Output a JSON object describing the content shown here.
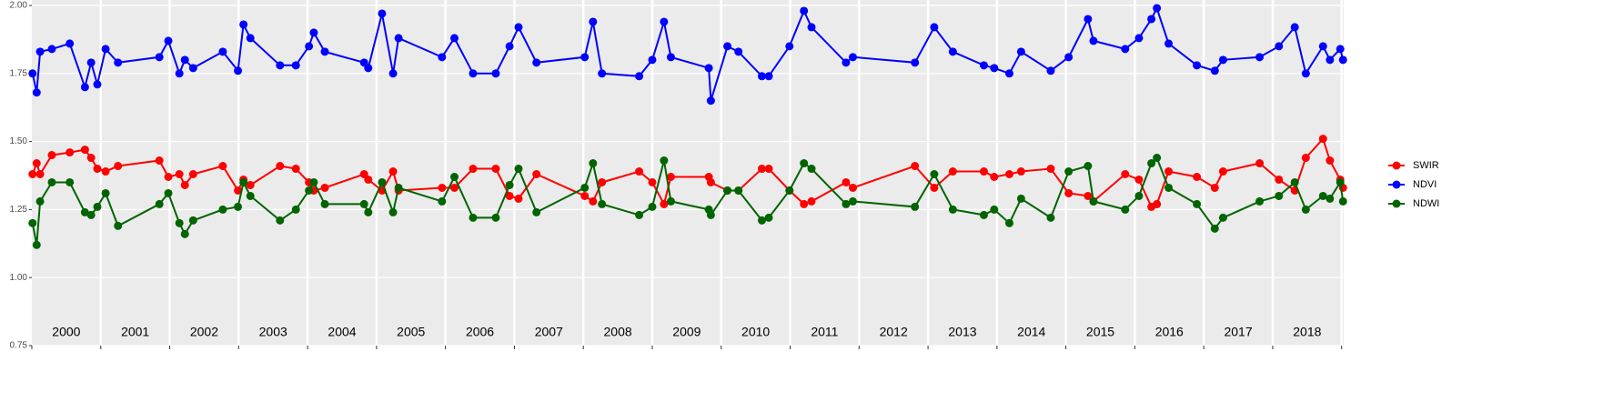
{
  "chart_data": {
    "type": "line",
    "x": [
      2000.01,
      2000.07,
      2000.12,
      2000.29,
      2000.55,
      2000.77,
      2000.86,
      2000.95,
      2001.07,
      2001.25,
      2001.85,
      2001.98,
      2002.14,
      2002.22,
      2002.34,
      2002.77,
      2002.99,
      2003.07,
      2003.17,
      2003.6,
      2003.83,
      2004.02,
      2004.09,
      2004.25,
      2004.82,
      2004.88,
      2005.08,
      2005.24,
      2005.32,
      2005.95,
      2006.13,
      2006.4,
      2006.73,
      2006.93,
      2007.06,
      2007.32,
      2008.02,
      2008.14,
      2008.27,
      2008.81,
      2009.0,
      2009.17,
      2009.27,
      2009.82,
      2009.85,
      2010.09,
      2010.25,
      2010.59,
      2010.69,
      2010.99,
      2011.2,
      2011.31,
      2011.81,
      2011.91,
      2012.81,
      2013.09,
      2013.36,
      2013.81,
      2013.96,
      2014.18,
      2014.35,
      2014.78,
      2015.04,
      2015.32,
      2015.4,
      2015.86,
      2016.06,
      2016.24,
      2016.32,
      2016.49,
      2016.9,
      2017.16,
      2017.28,
      2017.81,
      2018.09,
      2018.32,
      2018.48,
      2018.73,
      2018.83,
      2018.98,
      2019.02
    ],
    "series": [
      {
        "name": "SWIR",
        "color": "#ff0000",
        "values": [
          1.38,
          1.42,
          1.38,
          1.45,
          1.46,
          1.47,
          1.44,
          1.4,
          1.39,
          1.41,
          1.43,
          1.37,
          1.38,
          1.34,
          1.38,
          1.41,
          1.32,
          1.36,
          1.34,
          1.41,
          1.4,
          1.35,
          1.32,
          1.33,
          1.38,
          1.36,
          1.32,
          1.39,
          1.32,
          1.33,
          1.33,
          1.4,
          1.4,
          1.3,
          1.29,
          1.38,
          1.3,
          1.28,
          1.35,
          1.39,
          1.35,
          1.27,
          1.37,
          1.37,
          1.35,
          1.32,
          1.32,
          1.4,
          1.4,
          1.32,
          1.27,
          1.28,
          1.35,
          1.33,
          1.41,
          1.33,
          1.39,
          1.39,
          1.37,
          1.38,
          1.39,
          1.4,
          1.31,
          1.3,
          1.28,
          1.38,
          1.36,
          1.26,
          1.27,
          1.39,
          1.37,
          1.33,
          1.39,
          1.42,
          1.36,
          1.32,
          1.44,
          1.51,
          1.43,
          1.36,
          1.33
        ]
      },
      {
        "name": "NDVI",
        "color": "#0000ff",
        "values": [
          1.75,
          1.68,
          1.83,
          1.84,
          1.86,
          1.7,
          1.79,
          1.71,
          1.84,
          1.79,
          1.81,
          1.87,
          1.75,
          1.8,
          1.77,
          1.83,
          1.76,
          1.93,
          1.88,
          1.78,
          1.78,
          1.85,
          1.9,
          1.83,
          1.79,
          1.77,
          1.97,
          1.75,
          1.88,
          1.81,
          1.88,
          1.75,
          1.75,
          1.85,
          1.92,
          1.79,
          1.81,
          1.94,
          1.75,
          1.74,
          1.8,
          1.94,
          1.81,
          1.77,
          1.65,
          1.85,
          1.83,
          1.74,
          1.74,
          1.85,
          1.98,
          1.92,
          1.79,
          1.81,
          1.79,
          1.92,
          1.83,
          1.78,
          1.77,
          1.75,
          1.83,
          1.76,
          1.81,
          1.95,
          1.87,
          1.84,
          1.88,
          1.95,
          1.99,
          1.86,
          1.78,
          1.76,
          1.8,
          1.81,
          1.85,
          1.92,
          1.75,
          1.85,
          1.8,
          1.84,
          1.8
        ]
      },
      {
        "name": "NDWI",
        "color": "#006400",
        "values": [
          1.2,
          1.12,
          1.28,
          1.35,
          1.35,
          1.24,
          1.23,
          1.26,
          1.31,
          1.19,
          1.27,
          1.31,
          1.2,
          1.16,
          1.21,
          1.25,
          1.26,
          1.35,
          1.3,
          1.21,
          1.25,
          1.32,
          1.35,
          1.27,
          1.27,
          1.24,
          1.35,
          1.24,
          1.33,
          1.28,
          1.37,
          1.22,
          1.22,
          1.34,
          1.4,
          1.24,
          1.33,
          1.42,
          1.27,
          1.23,
          1.26,
          1.43,
          1.28,
          1.25,
          1.23,
          1.32,
          1.32,
          1.21,
          1.22,
          1.32,
          1.42,
          1.4,
          1.27,
          1.28,
          1.26,
          1.38,
          1.25,
          1.23,
          1.25,
          1.2,
          1.29,
          1.22,
          1.39,
          1.41,
          1.28,
          1.25,
          1.3,
          1.42,
          1.44,
          1.33,
          1.27,
          1.18,
          1.22,
          1.28,
          1.3,
          1.35,
          1.25,
          1.3,
          1.29,
          1.35,
          1.28
        ]
      }
    ],
    "xlim": [
      2000,
      2019.03
    ],
    "xticks": [
      2000,
      2001,
      2002,
      2003,
      2004,
      2005,
      2006,
      2007,
      2008,
      2009,
      2010,
      2011,
      2012,
      2013,
      2014,
      2015,
      2016,
      2017,
      2018,
      2019
    ],
    "year_labels": [
      "2000",
      "2001",
      "2002",
      "2003",
      "2004",
      "2005",
      "2006",
      "2007",
      "2008",
      "2009",
      "2010",
      "2011",
      "2012",
      "2013",
      "2014",
      "2015",
      "2016",
      "2017",
      "2018"
    ],
    "ylim": [
      0.75,
      2.0
    ],
    "yticks": [
      0.75,
      {
        "value": 1.0,
        "label": "1.00"
      },
      1.25,
      {
        "value": 1.5,
        "label": "1.50"
      },
      1.75,
      {
        "value": 2.0,
        "label": "2.00"
      }
    ],
    "grid": true,
    "legend": "right"
  }
}
